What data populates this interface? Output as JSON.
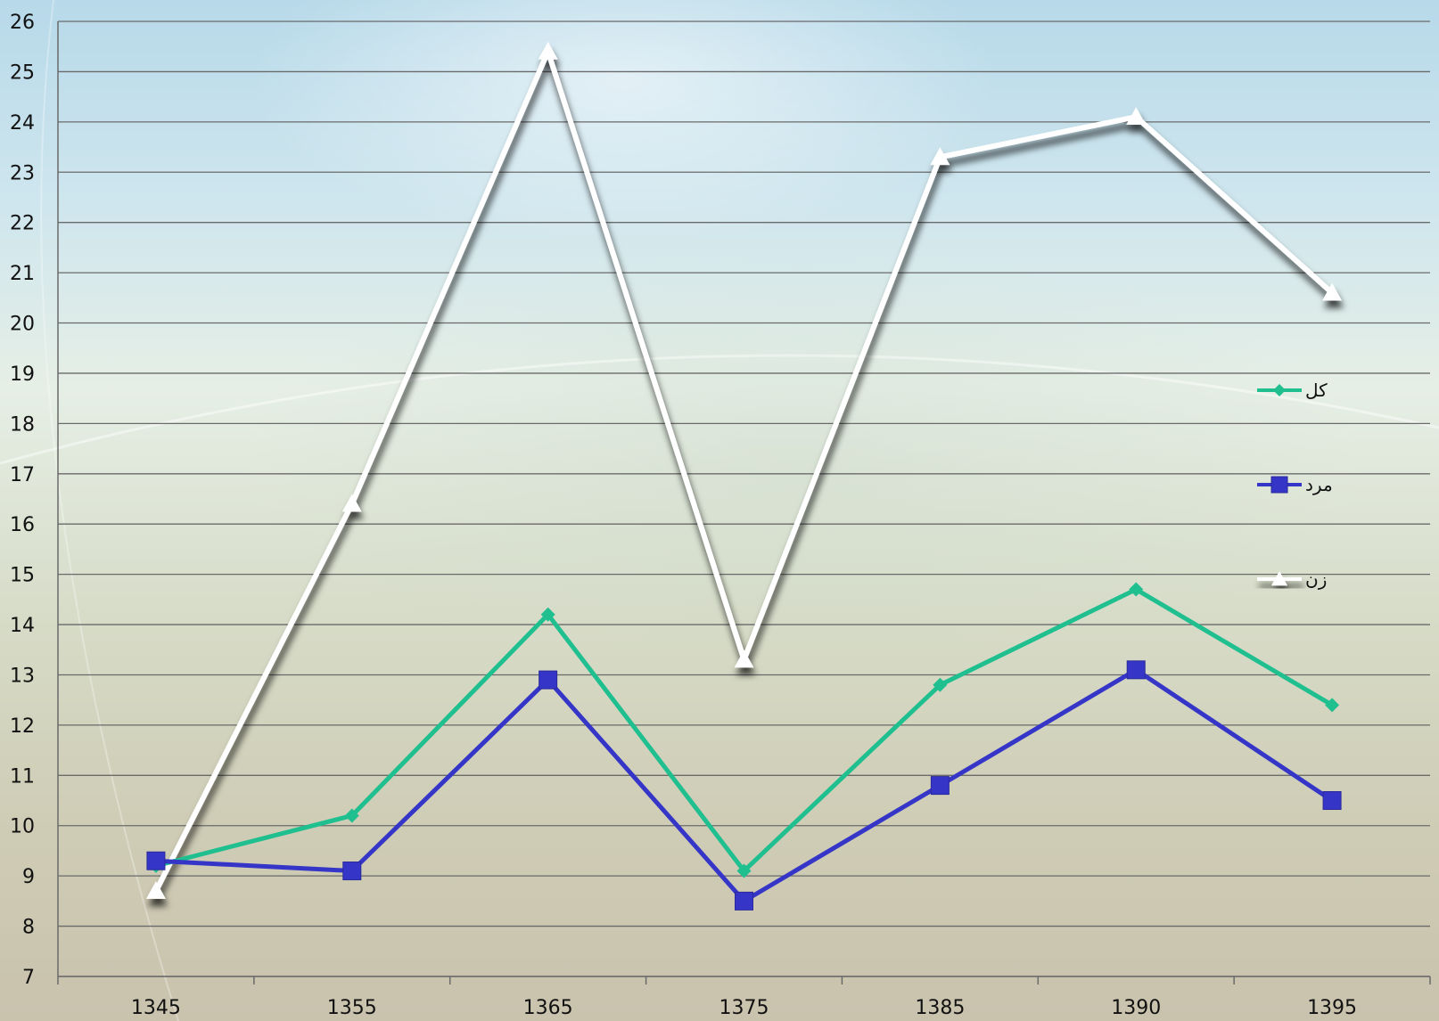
{
  "chart_data": {
    "type": "line",
    "categories": [
      "1345",
      "1355",
      "1365",
      "1375",
      "1385",
      "1390",
      "1395"
    ],
    "y_ticks": [
      "7",
      "8",
      "9",
      "10",
      "11",
      "12",
      "13",
      "14",
      "15",
      "16",
      "17",
      "18",
      "19",
      "20",
      "21",
      "22",
      "23",
      "24",
      "25",
      "26"
    ],
    "ylim": [
      7,
      26
    ],
    "grid": true,
    "legend_placement": "right",
    "series": [
      {
        "name": "کل",
        "values": [
          9.2,
          10.2,
          14.2,
          9.1,
          12.8,
          14.7,
          12.4
        ],
        "color": "#1fbf8f",
        "marker": "diamond"
      },
      {
        "name": "مرد",
        "values": [
          9.3,
          9.1,
          12.9,
          8.5,
          10.8,
          13.1,
          10.5
        ],
        "color": "#3535c8",
        "marker": "square"
      },
      {
        "name": "زن",
        "values": [
          8.7,
          16.4,
          25.4,
          13.3,
          23.3,
          24.1,
          20.6
        ],
        "color": "#ffffff",
        "marker": "triangle"
      }
    ]
  }
}
